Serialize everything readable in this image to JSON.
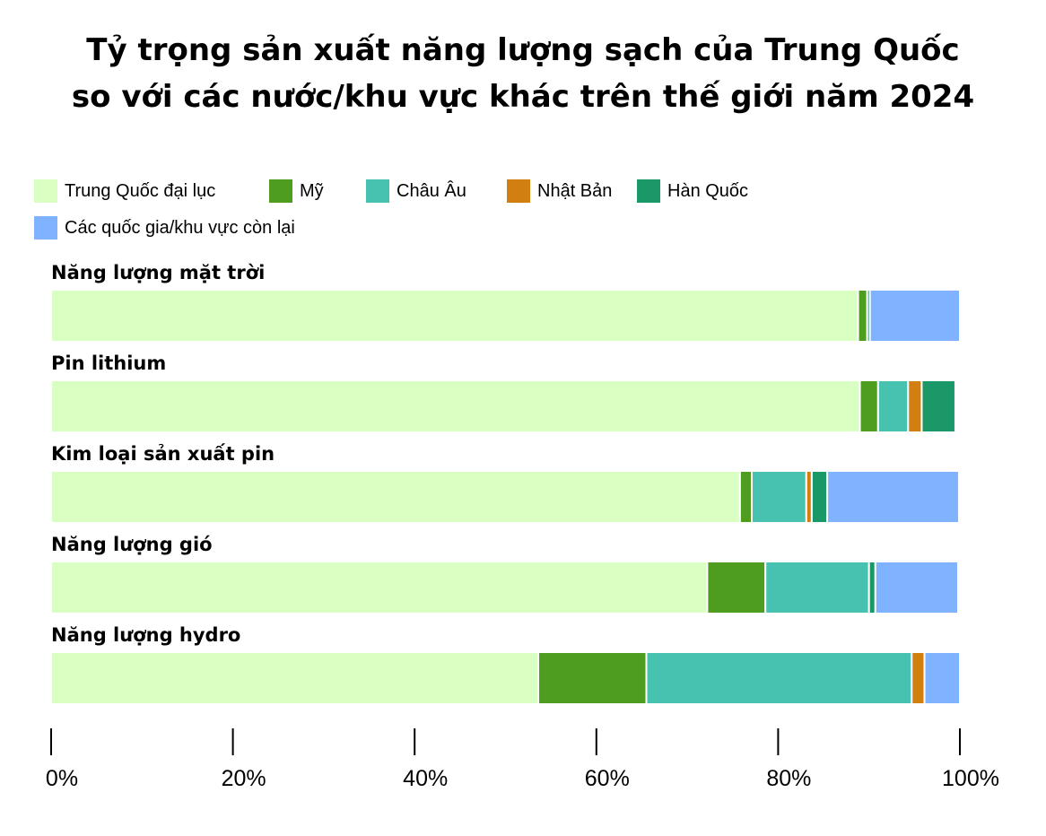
{
  "chart_data": {
    "type": "bar",
    "orientation": "horizontal",
    "stacked": true,
    "title_line1": "Tỷ trọng sản xuất năng lượng sạch của Trung Quốc",
    "title_line2": "so với các nước/khu vực khác trên thế giới năm 2024",
    "categories": [
      "Năng lượng mặt trời",
      "Pin lithium",
      "Kim loại sản xuất pin",
      "Năng lượng gió",
      "Năng lượng hydro"
    ],
    "series": [
      {
        "name": "Trung Quốc đại lục",
        "color": "#d9ffc2",
        "values": [
          88.8,
          89.0,
          75.8,
          72.2,
          53.6
        ]
      },
      {
        "name": "Mỹ",
        "color": "#4f9d1e",
        "values": [
          1.0,
          2.0,
          1.3,
          6.4,
          11.9
        ]
      },
      {
        "name": "Châu Âu",
        "color": "#48c2b0",
        "values": [
          0.0,
          3.3,
          6.0,
          11.4,
          29.2
        ]
      },
      {
        "name": "Nhật Bản",
        "color": "#d17f11",
        "values": [
          0.0,
          1.5,
          0.6,
          0.0,
          1.4
        ]
      },
      {
        "name": "Hàn Quốc",
        "color": "#1b9867",
        "values": [
          0.3,
          3.7,
          1.7,
          0.7,
          0.0
        ]
      },
      {
        "name": "Các quốc gia/khu vực còn lại",
        "color": "#80b3ff",
        "values": [
          9.9,
          0.0,
          14.5,
          9.1,
          3.9
        ]
      }
    ],
    "xlim": [
      0,
      100
    ],
    "xticks": [
      0,
      20,
      40,
      60,
      80,
      100
    ],
    "xtick_labels": [
      "0%",
      "20%",
      "40%",
      "60%",
      "80%",
      "100%"
    ],
    "legend_position": "top-left",
    "grid": false
  }
}
